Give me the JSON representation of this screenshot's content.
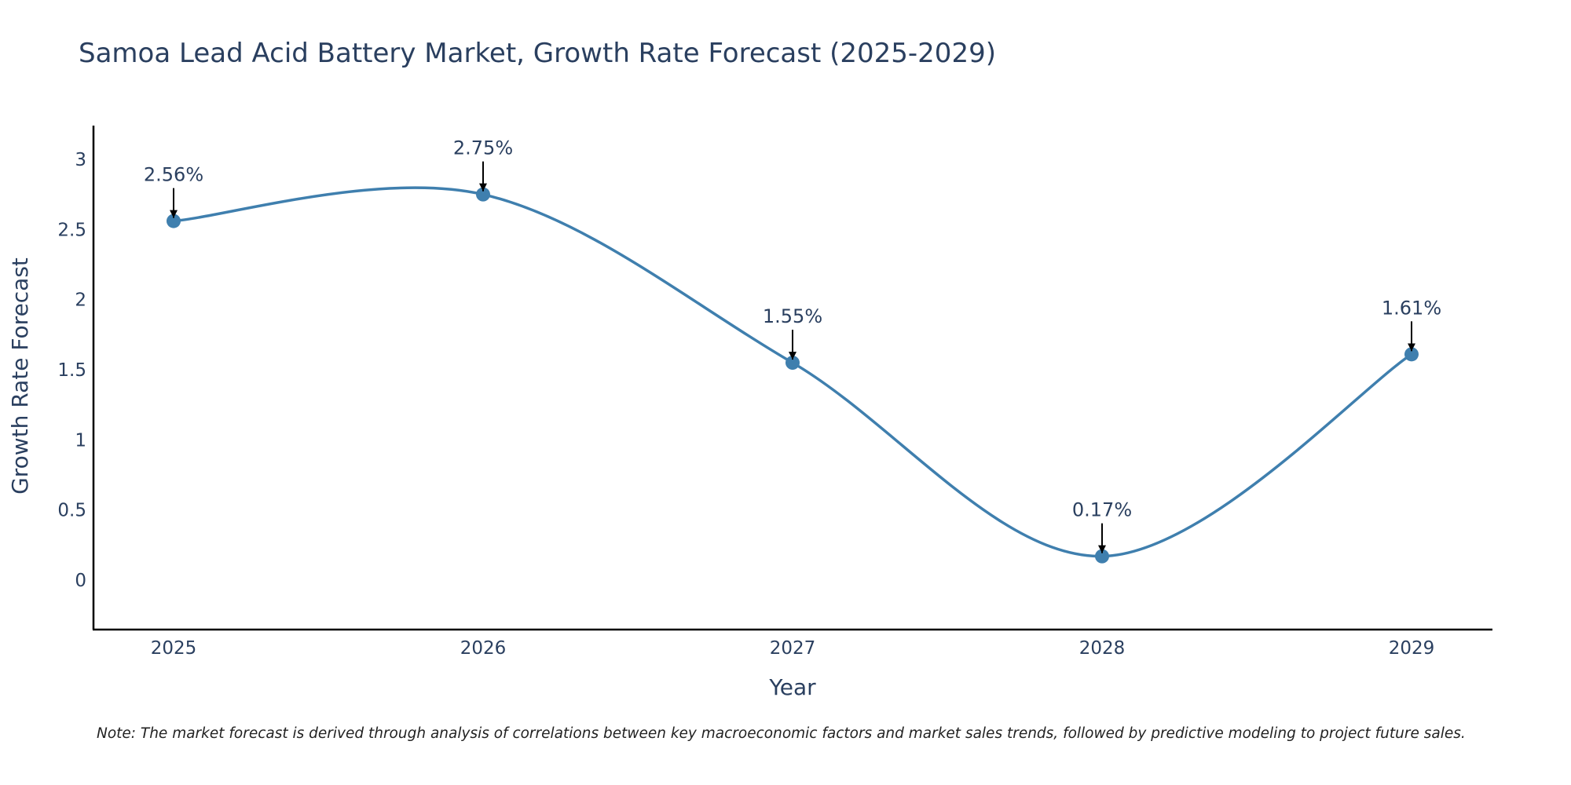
{
  "chart_data": {
    "type": "line",
    "title": "Samoa Lead Acid Battery Market, Growth Rate Forecast (2025-2029)",
    "xlabel": "Year",
    "ylabel": "Growth Rate Forecast",
    "categories": [
      "2025",
      "2026",
      "2027",
      "2028",
      "2029"
    ],
    "series": [
      {
        "name": "Growth Rate Forecast",
        "values": [
          2.56,
          2.75,
          1.55,
          0.17,
          1.61
        ],
        "color": "#3f7fae",
        "line_shape": "spline"
      }
    ],
    "data_labels": [
      "2.56%",
      "2.75%",
      "1.55%",
      "0.17%",
      "1.61%"
    ],
    "ylim": [
      -0.35,
      3.22
    ],
    "yticks": [
      0,
      0.5,
      1,
      1.5,
      2,
      2.5,
      3
    ],
    "ytick_labels": [
      "0",
      "0.5",
      "1",
      "1.5",
      "2",
      "2.5",
      "3"
    ],
    "grid": false,
    "legend": "none",
    "annotation_color": "#000000",
    "note": "Note: The market forecast is derived through analysis of correlations between key macroeconomic factors and market sales trends, followed by predictive modeling to project future sales."
  }
}
